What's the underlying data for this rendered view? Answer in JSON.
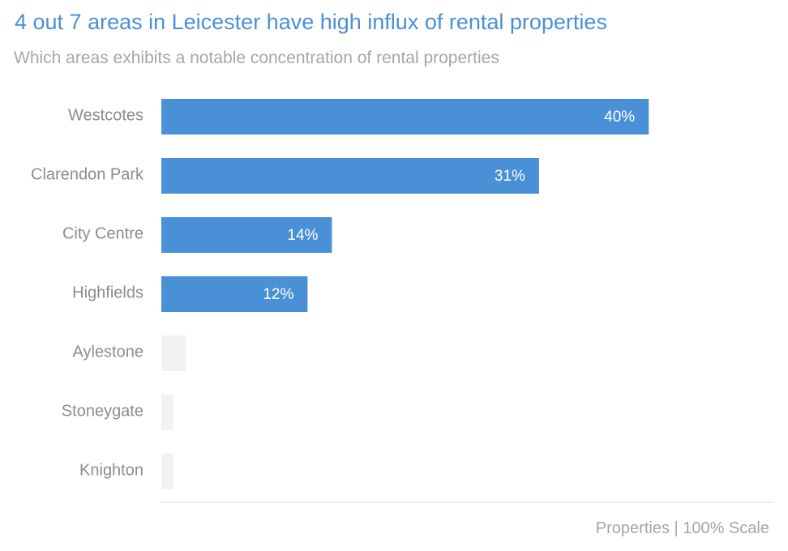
{
  "chart_data": {
    "type": "bar",
    "orientation": "horizontal",
    "title": "4 out 7 areas in Leicester have high influx of rental properties",
    "subtitle": "Which areas exhibits a notable concentration of rental properties",
    "note": "Properties | 100% Scale",
    "categories": [
      "Westcotes",
      "Clarendon Park",
      "City Centre",
      "Highfields",
      "Aylestone",
      "Stoneygate",
      "Knighton"
    ],
    "values": [
      40,
      31,
      14,
      12,
      2,
      1,
      1
    ],
    "value_labels": [
      "40%",
      "31%",
      "14%",
      "12%",
      "",
      "",
      ""
    ],
    "highlighted": [
      true,
      true,
      true,
      true,
      false,
      false,
      false
    ],
    "xlim": [
      0,
      50
    ],
    "grid": false,
    "colors": {
      "highlight": "#4a90d6",
      "muted": "#f2f2f2",
      "axis": "#e6e6e6"
    }
  }
}
